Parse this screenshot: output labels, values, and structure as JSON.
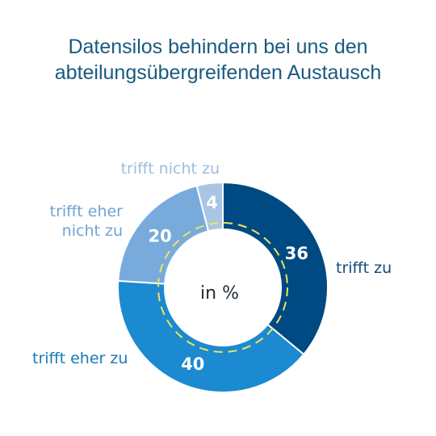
{
  "title": {
    "line1": "Datensilos behindern bei uns den",
    "line2": "abteilungsübergreifenden Austausch"
  },
  "chart_data": {
    "type": "pie",
    "variant": "donut",
    "center_label": "in %",
    "slices": [
      {
        "label": "trifft zu",
        "value": 36,
        "color": "#004a83",
        "label_color": "#0d4c7e"
      },
      {
        "label": "trifft eher zu",
        "value": 40,
        "color": "#1c8ad0",
        "label_color": "#1979b9"
      },
      {
        "label": "trifft eher nicht zu",
        "label_lines": [
          "trifft eher",
          "nicht zu"
        ],
        "value": 20,
        "color": "#78aadc",
        "label_color": "#6fa3d4"
      },
      {
        "label": "trifft nicht zu",
        "value": 4,
        "color": "#a9c5e4",
        "label_color": "#9dbde0"
      }
    ],
    "guide_ring_color": "#f2e35a",
    "unit": "%"
  }
}
